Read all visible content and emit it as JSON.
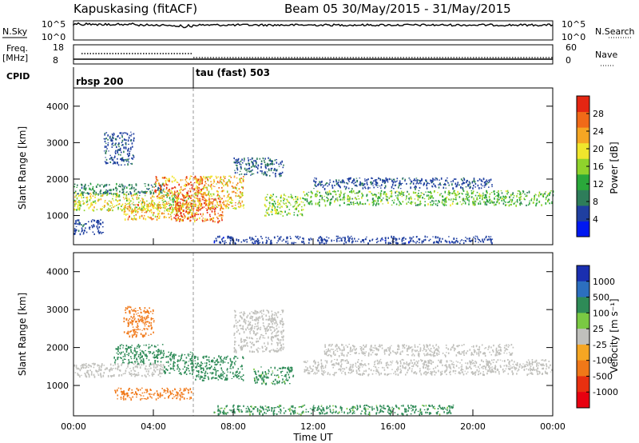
{
  "header": {
    "station": "Kapuskasing (fitACF)",
    "beam_info": "Beam 05 30/May/2015 - 31/May/2015"
  },
  "top_panels": {
    "nsky_label": "N.Sky",
    "nsky_ticks": [
      "10^5",
      "10^0"
    ],
    "nsearch_label": "N.Search",
    "nsearch_ticks": [
      "10^5",
      "10^0"
    ],
    "freq_label": "Freq.",
    "freq_unit": "[MHz]",
    "freq_ticks": [
      "18",
      "8"
    ],
    "nave_label": "Nave",
    "nave_ticks": [
      "60",
      "0"
    ],
    "cpid_label": "CPID",
    "cpid_segments": [
      {
        "label": "rbsp 200",
        "start_hour": 0,
        "end_hour": 6
      },
      {
        "label": "tau (fast) 503",
        "start_hour": 6,
        "end_hour": 24
      }
    ]
  },
  "chart_data": [
    {
      "type": "heatmap",
      "title": "",
      "ylabel": "Slant Range [km]",
      "xlabel": "",
      "xlim": [
        0,
        24
      ],
      "ylim": [
        200,
        4500
      ],
      "y_ticks": [
        "1000",
        "2000",
        "3000",
        "4000"
      ],
      "colorbar": {
        "label": "Power [dB]",
        "tick_labels": [
          "4",
          "8",
          "12",
          "16",
          "20",
          "24",
          "28"
        ],
        "range": [
          0,
          32
        ],
        "colors": [
          "#0018f0",
          "#1f3fa0",
          "#2e7d5a",
          "#2aa83a",
          "#8fd32c",
          "#f0e62c",
          "#f5a623",
          "#f06a18",
          "#e42612"
        ]
      },
      "regions": [
        {
          "x": [
            0.0,
            6.0
          ],
          "y": [
            1150,
            1650
          ],
          "value": 18
        },
        {
          "x": [
            0.0,
            4.5
          ],
          "y": [
            1600,
            1900
          ],
          "value": 9
        },
        {
          "x": [
            2.5,
            6.0
          ],
          "y": [
            900,
            1350
          ],
          "value": 22
        },
        {
          "x": [
            4.0,
            6.5
          ],
          "y": [
            1500,
            2100
          ],
          "value": 26
        },
        {
          "x": [
            5.0,
            7.5
          ],
          "y": [
            850,
            1500
          ],
          "value": 29
        },
        {
          "x": [
            6.0,
            8.5
          ],
          "y": [
            1200,
            2100
          ],
          "value": 22
        },
        {
          "x": [
            8.0,
            10.5
          ],
          "y": [
            2100,
            2600
          ],
          "value": 7
        },
        {
          "x": [
            9.5,
            11.5
          ],
          "y": [
            1000,
            1600
          ],
          "value": 16
        },
        {
          "x": [
            11.5,
            24.0
          ],
          "y": [
            1300,
            1700
          ],
          "value": 14
        },
        {
          "x": [
            12.0,
            21.0
          ],
          "y": [
            1750,
            2050
          ],
          "value": 6
        },
        {
          "x": [
            0.0,
            1.5
          ],
          "y": [
            500,
            900
          ],
          "value": 6
        },
        {
          "x": [
            7.0,
            21.0
          ],
          "y": [
            250,
            450
          ],
          "value": 5
        },
        {
          "x": [
            1.5,
            3.0
          ],
          "y": [
            2400,
            3300
          ],
          "value": 6
        }
      ]
    },
    {
      "type": "heatmap",
      "title": "",
      "ylabel": "Slant Range [km]",
      "xlabel": "Time UT",
      "xlim": [
        0,
        24
      ],
      "ylim": [
        200,
        4500
      ],
      "x_ticks": [
        "00:00",
        "04:00",
        "08:00",
        "12:00",
        "16:00",
        "20:00",
        "00:00"
      ],
      "y_ticks": [
        "1000",
        "2000",
        "3000",
        "4000"
      ],
      "colorbar": {
        "label": "Velocity [m s⁻¹]",
        "tick_labels": [
          "1000",
          "500",
          "100",
          "25",
          "-25",
          "-100",
          "-500",
          "-1000"
        ],
        "colors": [
          "#1a2fb0",
          "#2c6fbf",
          "#2e8b57",
          "#7ac943",
          "#c0c0bc",
          "#f5a623",
          "#f07818",
          "#e83010",
          "#e80010"
        ]
      },
      "regions": [
        {
          "x": [
            0.0,
            4.5
          ],
          "y": [
            1250,
            1600
          ],
          "value": 0
        },
        {
          "x": [
            2.0,
            4.5
          ],
          "y": [
            1600,
            2100
          ],
          "value": 200
        },
        {
          "x": [
            2.5,
            4.0
          ],
          "y": [
            2300,
            3100
          ],
          "value": -300
        },
        {
          "x": [
            2.0,
            6.0
          ],
          "y": [
            650,
            950
          ],
          "value": -150
        },
        {
          "x": [
            4.5,
            6.0
          ],
          "y": [
            1300,
            1900
          ],
          "value": 150
        },
        {
          "x": [
            6.0,
            8.5
          ],
          "y": [
            1150,
            1800
          ],
          "value": 120
        },
        {
          "x": [
            8.0,
            10.5
          ],
          "y": [
            1900,
            3000
          ],
          "value": 0
        },
        {
          "x": [
            9.0,
            11.0
          ],
          "y": [
            1050,
            1500
          ],
          "value": 80
        },
        {
          "x": [
            11.5,
            24.0
          ],
          "y": [
            1300,
            1700
          ],
          "value": 0
        },
        {
          "x": [
            12.5,
            22.0
          ],
          "y": [
            1800,
            2100
          ],
          "value": 0
        },
        {
          "x": [
            7.0,
            19.0
          ],
          "y": [
            250,
            500
          ],
          "value": 80
        }
      ]
    }
  ]
}
